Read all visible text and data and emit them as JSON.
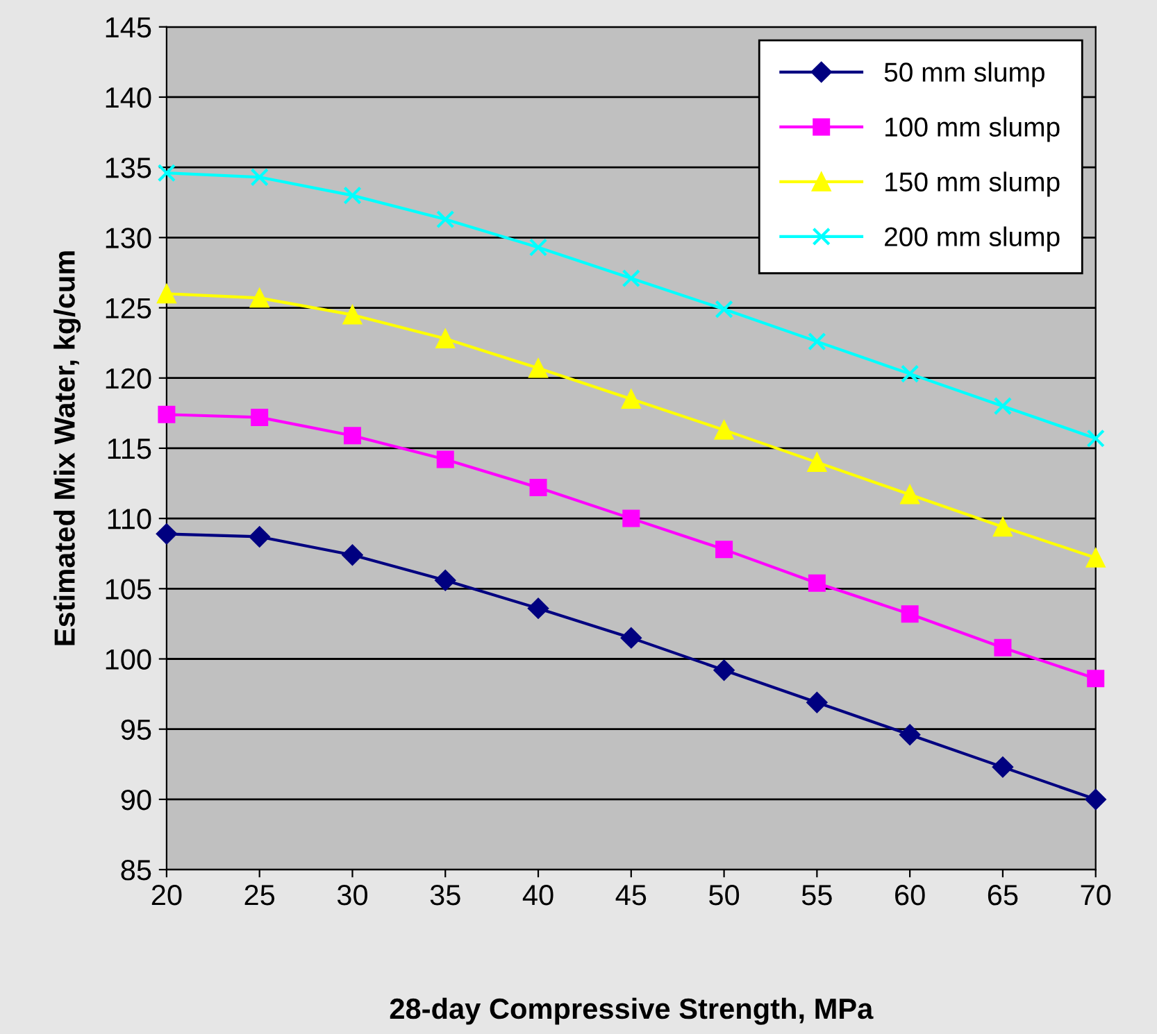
{
  "chart_data": {
    "type": "line",
    "xlabel": "28-day Compressive Strength, MPa",
    "ylabel": "Estimated Mix Water, kg/cum",
    "x": [
      20,
      25,
      30,
      35,
      40,
      45,
      50,
      55,
      60,
      65,
      70
    ],
    "series": [
      {
        "name": "50 mm slump",
        "color": "#000080",
        "marker": "diamond",
        "values": [
          108.9,
          108.7,
          107.4,
          105.6,
          103.6,
          101.5,
          99.2,
          96.9,
          94.6,
          92.3,
          90.0
        ]
      },
      {
        "name": "100 mm slump",
        "color": "#ff00ff",
        "marker": "square",
        "values": [
          117.4,
          117.2,
          115.9,
          114.2,
          112.2,
          110.0,
          107.8,
          105.4,
          103.2,
          100.8,
          98.6
        ]
      },
      {
        "name": "150 mm slump",
        "color": "#ffff00",
        "marker": "triangle",
        "values": [
          126.0,
          125.7,
          124.5,
          122.8,
          120.7,
          118.5,
          116.3,
          114.0,
          111.7,
          109.4,
          107.2
        ]
      },
      {
        "name": "200 mm slump",
        "color": "#00ffff",
        "marker": "cross",
        "values": [
          134.6,
          134.3,
          133.0,
          131.3,
          129.3,
          127.1,
          124.9,
          122.6,
          120.3,
          118.0,
          115.7
        ]
      }
    ],
    "xlim": [
      20,
      70
    ],
    "xticks": [
      20,
      25,
      30,
      35,
      40,
      45,
      50,
      55,
      60,
      65,
      70
    ],
    "ylim": [
      85,
      145
    ],
    "yticks": [
      85,
      90,
      95,
      100,
      105,
      110,
      115,
      120,
      125,
      130,
      135,
      140,
      145
    ],
    "grid": "y",
    "legend": "top right",
    "line_style": "solid"
  }
}
